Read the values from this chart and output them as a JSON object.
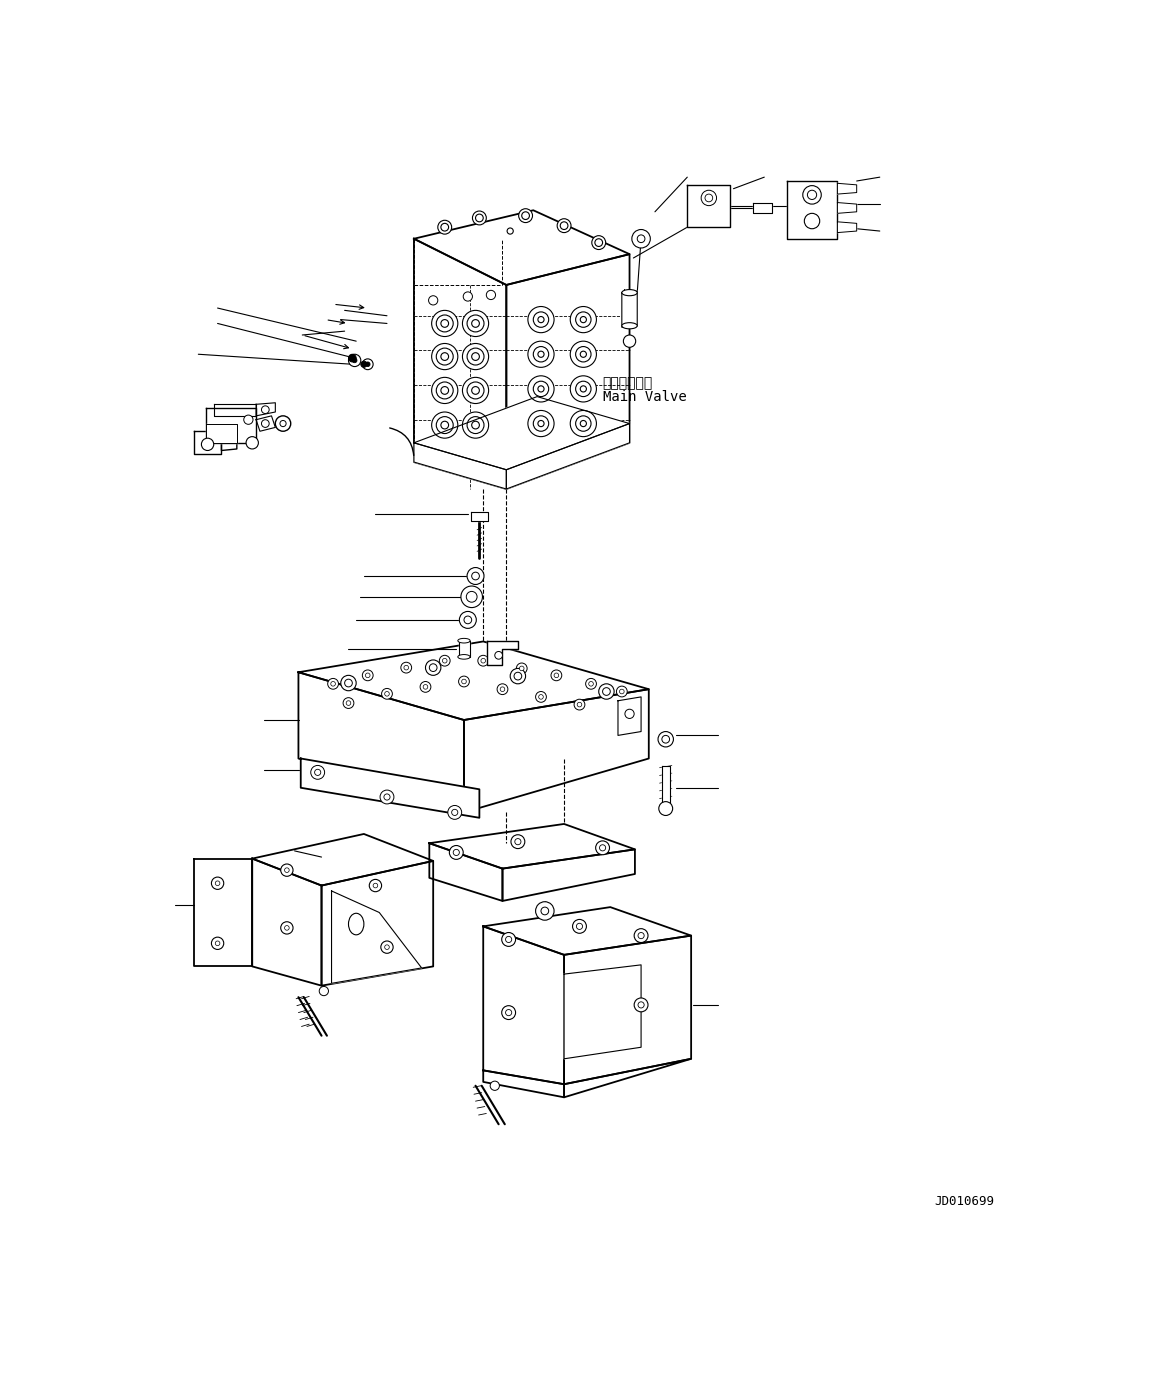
{
  "background_color": "#ffffff",
  "line_color": "#000000",
  "diagram_id": "JD010699",
  "label_main_valve_jp": "メインバルブ",
  "label_main_valve_en": "Main Valve",
  "figsize": [
    11.63,
    13.8
  ],
  "dpi": 100
}
